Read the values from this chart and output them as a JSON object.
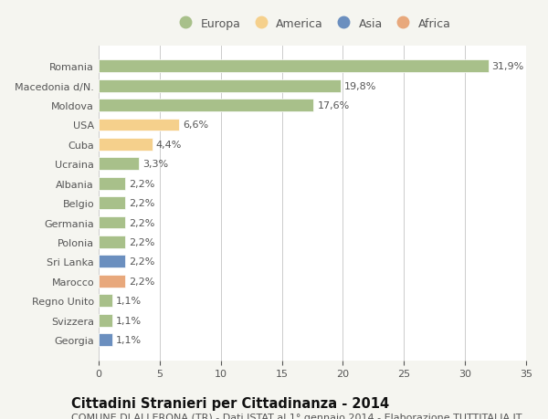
{
  "countries": [
    "Romania",
    "Macedonia d/N.",
    "Moldova",
    "USA",
    "Cuba",
    "Ucraina",
    "Albania",
    "Belgio",
    "Germania",
    "Polonia",
    "Sri Lanka",
    "Marocco",
    "Regno Unito",
    "Svizzera",
    "Georgia"
  ],
  "values": [
    31.9,
    19.8,
    17.6,
    6.6,
    4.4,
    3.3,
    2.2,
    2.2,
    2.2,
    2.2,
    2.2,
    2.2,
    1.1,
    1.1,
    1.1
  ],
  "labels": [
    "31,9%",
    "19,8%",
    "17,6%",
    "6,6%",
    "4,4%",
    "3,3%",
    "2,2%",
    "2,2%",
    "2,2%",
    "2,2%",
    "2,2%",
    "2,2%",
    "1,1%",
    "1,1%",
    "1,1%"
  ],
  "colors": [
    "#a8c08a",
    "#a8c08a",
    "#a8c08a",
    "#f5d08c",
    "#f5d08c",
    "#a8c08a",
    "#a8c08a",
    "#a8c08a",
    "#a8c08a",
    "#a8c08a",
    "#6b8fbf",
    "#e8a87c",
    "#a8c08a",
    "#a8c08a",
    "#6b8fbf"
  ],
  "legend_labels": [
    "Europa",
    "America",
    "Asia",
    "Africa"
  ],
  "legend_colors": [
    "#a8c08a",
    "#f5d08c",
    "#6b8fbf",
    "#e8a87c"
  ],
  "xlim": [
    0,
    35
  ],
  "xticks": [
    0,
    5,
    10,
    15,
    20,
    25,
    30,
    35
  ],
  "title": "Cittadini Stranieri per Cittadinanza - 2014",
  "subtitle": "COMUNE DI ALLERONA (TR) - Dati ISTAT al 1° gennaio 2014 - Elaborazione TUTTITALIA.IT",
  "background_color": "#f5f5f0",
  "plot_bg_color": "#ffffff",
  "grid_color": "#cccccc",
  "text_color": "#555555",
  "title_color": "#111111",
  "label_fontsize": 8,
  "title_fontsize": 10.5,
  "subtitle_fontsize": 8
}
